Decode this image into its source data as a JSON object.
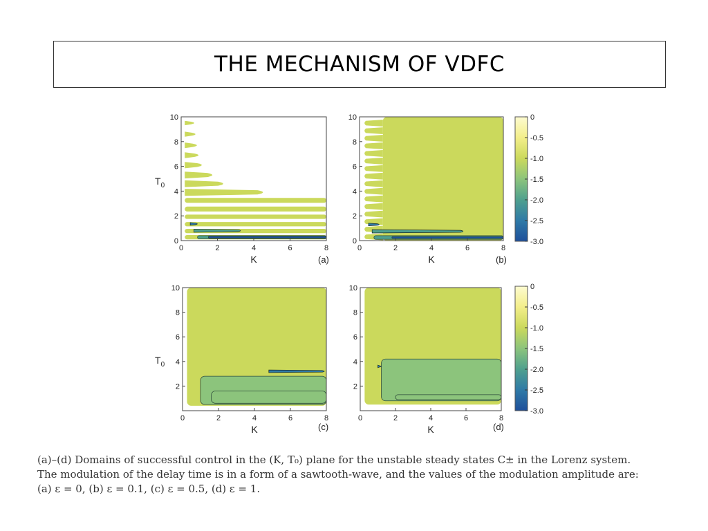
{
  "slide": {
    "title": "THE MECHANISM OF VDFC",
    "caption_lines": [
      "(a)–(d) Domains of successful control in the (K, T₀) plane for the unstable steady states C± in the Lorenz system.",
      "The modulation of the delay time is in a form of a sawtooth-wave, and the values of the modulation amplitude are:",
      "(a) ε = 0, (b) ε = 0.1, (c) ε = 0.5, (d) ε = 1."
    ]
  },
  "colors": {
    "c0": "#fdfbd0",
    "c05": "#f3ee8a",
    "c10": "#cbd95c",
    "c15": "#8cc47c",
    "c20": "#4fa08e",
    "c25": "#2f7aa7",
    "c30": "#1e4f9a"
  },
  "chart_data": [
    {
      "type": "heatmap",
      "panel": "(a)",
      "xlabel": "K",
      "ylabel": "T0",
      "xlim": [
        0,
        8
      ],
      "ylim": [
        0,
        10
      ],
      "xticks": [
        "0",
        "2",
        "4",
        "6",
        "8"
      ],
      "yticks": [
        "0",
        "2",
        "4",
        "6",
        "8",
        "10"
      ],
      "colorbar": {
        "ticks": [
          "0",
          "-0.5",
          "-1.0",
          "-1.5",
          "-2.0",
          "-2.5",
          "-3.0"
        ],
        "range": [
          0,
          -3.0
        ]
      },
      "regions": [
        {
          "shape": "tongue",
          "k_range": [
            0.2,
            0.9
          ],
          "t0_center": 9.5,
          "half_height": 0.12,
          "level": -1.0
        },
        {
          "shape": "tongue",
          "k_range": [
            0.2,
            1.0
          ],
          "t0_center": 8.6,
          "half_height": 0.15,
          "level": -1.0
        },
        {
          "shape": "tongue",
          "k_range": [
            0.2,
            1.1
          ],
          "t0_center": 7.7,
          "half_height": 0.17,
          "level": -1.0
        },
        {
          "shape": "tongue",
          "k_range": [
            0.2,
            1.2
          ],
          "t0_center": 6.9,
          "half_height": 0.18,
          "level": -1.0
        },
        {
          "shape": "tongue",
          "k_range": [
            0.2,
            1.4
          ],
          "t0_center": 6.1,
          "half_height": 0.2,
          "level": -1.0
        },
        {
          "shape": "tongue",
          "k_range": [
            0.2,
            2.0
          ],
          "t0_center": 5.3,
          "half_height": 0.22,
          "level": -1.0
        },
        {
          "shape": "tongue",
          "k_range": [
            0.2,
            2.6
          ],
          "t0_center": 4.6,
          "half_height": 0.22,
          "level": -1.0
        },
        {
          "shape": "tongue",
          "k_range": [
            0.2,
            4.8
          ],
          "t0_center": 3.9,
          "half_height": 0.23,
          "level": -1.0
        },
        {
          "shape": "band",
          "k_range": [
            0.2,
            8.0
          ],
          "t0_range": [
            3.05,
            3.45
          ],
          "level": -1.0
        },
        {
          "shape": "band",
          "k_range": [
            0.2,
            8.0
          ],
          "t0_range": [
            2.35,
            2.75
          ],
          "level": -1.0
        },
        {
          "shape": "band",
          "k_range": [
            0.2,
            8.0
          ],
          "t0_range": [
            1.75,
            2.1
          ],
          "level": -1.0
        },
        {
          "shape": "band",
          "k_range": [
            0.2,
            8.0
          ],
          "t0_range": [
            1.15,
            1.5
          ],
          "level": -1.0
        },
        {
          "shape": "band",
          "k_range": [
            0.2,
            8.0
          ],
          "t0_range": [
            0.6,
            0.95
          ],
          "level": -1.0
        },
        {
          "shape": "band",
          "k_range": [
            0.2,
            8.0
          ],
          "t0_range": [
            0.1,
            0.45
          ],
          "level": -1.0
        },
        {
          "shape": "tongue",
          "k_range": [
            0.5,
            1.0
          ],
          "t0_center": 1.35,
          "half_height": 0.05,
          "level": -2.5
        },
        {
          "shape": "tongue",
          "k_range": [
            0.7,
            3.4
          ],
          "t0_center": 0.8,
          "half_height": 0.07,
          "level": -2.0
        },
        {
          "shape": "band",
          "k_range": [
            0.9,
            8.0
          ],
          "t0_range": [
            0.15,
            0.4
          ],
          "level": -1.8
        },
        {
          "shape": "band",
          "k_range": [
            1.5,
            8.0
          ],
          "t0_range": [
            0.2,
            0.35
          ],
          "level": -2.8
        }
      ]
    },
    {
      "type": "heatmap",
      "panel": "(b)",
      "xlabel": "K",
      "ylabel": "",
      "xlim": [
        0,
        8
      ],
      "ylim": [
        0,
        10
      ],
      "xticks": [
        "0",
        "2",
        "4",
        "6",
        "8"
      ],
      "yticks": [
        "0",
        "2",
        "4",
        "6",
        "8",
        "10"
      ],
      "regions": [
        {
          "shape": "band",
          "k_range": [
            1.3,
            8.0
          ],
          "t0_range": [
            0.0,
            10.0
          ],
          "level": -1.0
        },
        {
          "shape": "scallops",
          "k_range": [
            0.2,
            1.3
          ],
          "t0_range": [
            0.0,
            9.8
          ],
          "count": 16,
          "level": -1.0
        },
        {
          "shape": "tongue",
          "k_range": [
            0.5,
            1.2
          ],
          "t0_center": 1.3,
          "half_height": 0.05,
          "level": -2.5
        },
        {
          "shape": "tongue",
          "k_range": [
            0.7,
            5.9
          ],
          "t0_center": 0.75,
          "half_height": 0.08,
          "level": -2.0
        },
        {
          "shape": "band",
          "k_range": [
            0.8,
            8.0
          ],
          "t0_range": [
            0.1,
            0.4
          ],
          "level": -1.8
        },
        {
          "shape": "band",
          "k_range": [
            1.8,
            8.0
          ],
          "t0_range": [
            0.18,
            0.32
          ],
          "level": -2.8
        }
      ]
    },
    {
      "type": "heatmap",
      "panel": "(c)",
      "xlabel": "K",
      "ylabel": "T0",
      "xlim": [
        0,
        8
      ],
      "ylim": [
        0,
        10
      ],
      "xticks": [
        "0",
        "2",
        "4",
        "6",
        "8"
      ],
      "yticks": [
        "2",
        "4",
        "6",
        "8",
        "10"
      ],
      "colorbar": {
        "ticks": [
          "0",
          "-0.5",
          "-1.0",
          "-1.5",
          "-2.0",
          "-2.5",
          "-3.0"
        ],
        "range": [
          0,
          -3.0
        ]
      },
      "regions": [
        {
          "shape": "band",
          "k_range": [
            0.25,
            8.0
          ],
          "t0_range": [
            0.4,
            10.0
          ],
          "level": -1.0
        },
        {
          "shape": "band",
          "k_range": [
            1.0,
            8.0
          ],
          "t0_range": [
            0.5,
            2.8
          ],
          "level": -1.4
        },
        {
          "shape": "band",
          "k_range": [
            1.6,
            8.0
          ],
          "t0_range": [
            0.6,
            1.6
          ],
          "level": -1.6
        },
        {
          "shape": "tongue",
          "k_range": [
            4.8,
            8.0
          ],
          "t0_center": 3.2,
          "half_height": 0.05,
          "level": -2.3
        }
      ]
    },
    {
      "type": "heatmap",
      "panel": "(d)",
      "xlabel": "K",
      "ylabel": "",
      "xlim": [
        0,
        8
      ],
      "ylim": [
        0,
        10
      ],
      "xticks": [
        "0",
        "2",
        "4",
        "6",
        "8"
      ],
      "yticks": [
        "2",
        "4",
        "6",
        "8",
        "10"
      ],
      "colorbar": {
        "ticks": [
          "0",
          "-0.5",
          "-1.0",
          "-1.5",
          "-2.0",
          "-2.5",
          "-3.0"
        ],
        "range": [
          0,
          -3.0
        ]
      },
      "regions": [
        {
          "shape": "band",
          "k_range": [
            0.25,
            8.0
          ],
          "t0_range": [
            0.5,
            10.0
          ],
          "level": -1.0
        },
        {
          "shape": "band",
          "k_range": [
            1.2,
            8.0
          ],
          "t0_range": [
            0.8,
            4.2
          ],
          "level": -1.4
        },
        {
          "shape": "band",
          "k_range": [
            2.0,
            8.0
          ],
          "t0_range": [
            0.9,
            1.3
          ],
          "level": -1.5
        },
        {
          "shape": "tongue",
          "k_range": [
            1.0,
            1.3
          ],
          "t0_center": 3.6,
          "half_height": 0.05,
          "level": -2.5
        }
      ]
    }
  ]
}
